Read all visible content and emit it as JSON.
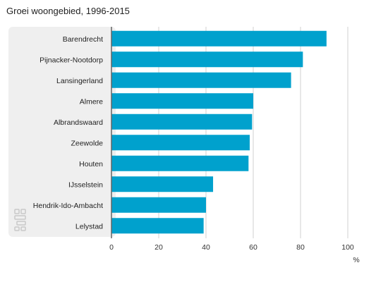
{
  "title": "Groei woongebied, 1996-2015",
  "colors": {
    "bar": "#00a1cd",
    "panel": "#efefef",
    "grid": "#d0d0d0",
    "axis": "#666666",
    "logo": "#c9c9c9"
  },
  "logo_icon": "cbs-logo-icon",
  "chart_data": {
    "type": "bar",
    "orientation": "horizontal",
    "title": "Groei woongebied, 1996-2015",
    "categories": [
      "Barendrecht",
      "Pijnacker-Nootdorp",
      "Lansingerland",
      "Almere",
      "Albrandswaard",
      "Zeewolde",
      "Houten",
      "IJsselstein",
      "Hendrik-Ido-Ambacht",
      "Lelystad"
    ],
    "values": [
      91,
      81,
      76,
      60,
      59.5,
      58.5,
      58,
      43,
      40,
      39
    ],
    "xlim": [
      0,
      100
    ],
    "xticks": [
      0,
      20,
      40,
      60,
      80,
      100
    ],
    "xunit": "%",
    "grid": true,
    "legend": "none"
  }
}
